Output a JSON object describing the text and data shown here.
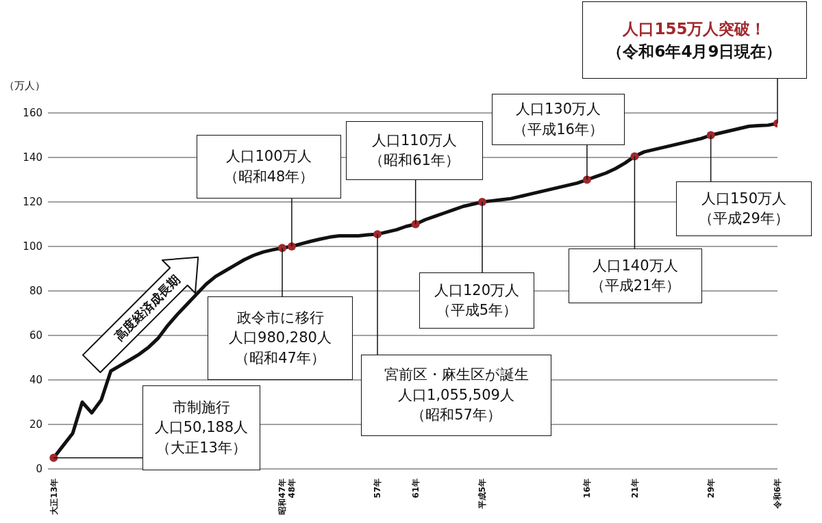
{
  "chart_data": {
    "type": "line",
    "ylabel": "（万人）",
    "categories": [
      "大正13年",
      null,
      null,
      null,
      null,
      null,
      null,
      null,
      null,
      null,
      null,
      null,
      null,
      null,
      null,
      null,
      null,
      null,
      null,
      null,
      null,
      null,
      null,
      null,
      "昭和47年",
      "48年",
      null,
      null,
      null,
      null,
      null,
      null,
      null,
      null,
      "57年",
      null,
      null,
      null,
      "61年",
      null,
      null,
      null,
      null,
      null,
      null,
      "平成5年",
      null,
      null,
      null,
      null,
      null,
      null,
      null,
      null,
      null,
      null,
      "16年",
      null,
      null,
      null,
      null,
      "21年",
      null,
      null,
      null,
      null,
      null,
      null,
      null,
      "29年",
      null,
      null,
      null,
      null,
      null,
      null,
      "令和6年"
    ],
    "series": [
      {
        "type": "line",
        "color": "#111111",
        "marker": "none",
        "values": [
          5,
          10.5,
          16,
          30,
          25.2,
          31,
          44,
          46.5,
          49,
          51.6,
          54.8,
          58.9,
          64.6,
          69.5,
          74,
          78.5,
          83,
          86.5,
          89,
          91.5,
          94,
          96,
          97.5,
          98.5,
          99.3,
          100,
          101.2,
          102.3,
          103.3,
          104.2,
          104.8,
          104.8,
          104.8,
          105.2,
          105.5,
          106.5,
          107.5,
          109,
          110,
          112,
          113.5,
          115,
          116.5,
          118,
          119,
          120,
          120.5,
          121,
          121.5,
          122.5,
          123.5,
          124.5,
          125.5,
          126.5,
          127.5,
          128.5,
          130,
          131.5,
          133,
          135,
          137.5,
          140.5,
          142.5,
          143.5,
          144.5,
          145.5,
          146.5,
          147.5,
          148.5,
          150,
          151,
          152,
          153,
          154,
          154.3,
          154.5,
          155.3
        ]
      },
      {
        "type": "scatter",
        "color": "#a0282d",
        "marker": "circle",
        "x": [
          "大正13年",
          "昭和47年",
          "48年",
          "57年",
          "61年",
          "平成5年",
          "16年",
          "21年",
          "29年",
          "令和6年"
        ],
        "values": [
          5,
          99.3,
          100,
          105.5,
          110,
          120,
          130,
          140.5,
          150,
          155.3
        ]
      }
    ],
    "line_style": "solid",
    "ylim": [
      0,
      160
    ],
    "yticks": [
      0,
      20,
      40,
      60,
      80,
      100,
      120,
      140,
      160
    ],
    "grid": "y",
    "legend": false,
    "annotations": [
      {
        "text": "市制施行人口50,188人（大正13年）",
        "x": "大正13年",
        "y": 5
      },
      {
        "text": "政令市に移行人口980,280人（昭和47年）",
        "x": "昭和47年",
        "y": 99.3
      },
      {
        "text": "人口100万人（昭和48年）",
        "x": "48年",
        "y": 100
      },
      {
        "text": "宮前区・麻生区が誕生人口1,055,509人（昭和57年）",
        "x": "57年",
        "y": 105.5
      },
      {
        "text": "人口110万人（昭和61年）",
        "x": "61年",
        "y": 110
      },
      {
        "text": "人口120万人（平成5年）",
        "x": "平成5年",
        "y": 120
      },
      {
        "text": "人口130万人（平成16年）",
        "x": "16年",
        "y": 130
      },
      {
        "text": "人口140万人（平成21年）",
        "x": "21年",
        "y": 140.5
      },
      {
        "text": "人口150万人（平成29年）",
        "x": "29年",
        "y": 150
      },
      {
        "text": "人口155万人突破！（令和6年4月9日現在）",
        "x": "令和6年",
        "y": 155.3
      },
      "高度経済成長期"
    ]
  }
}
